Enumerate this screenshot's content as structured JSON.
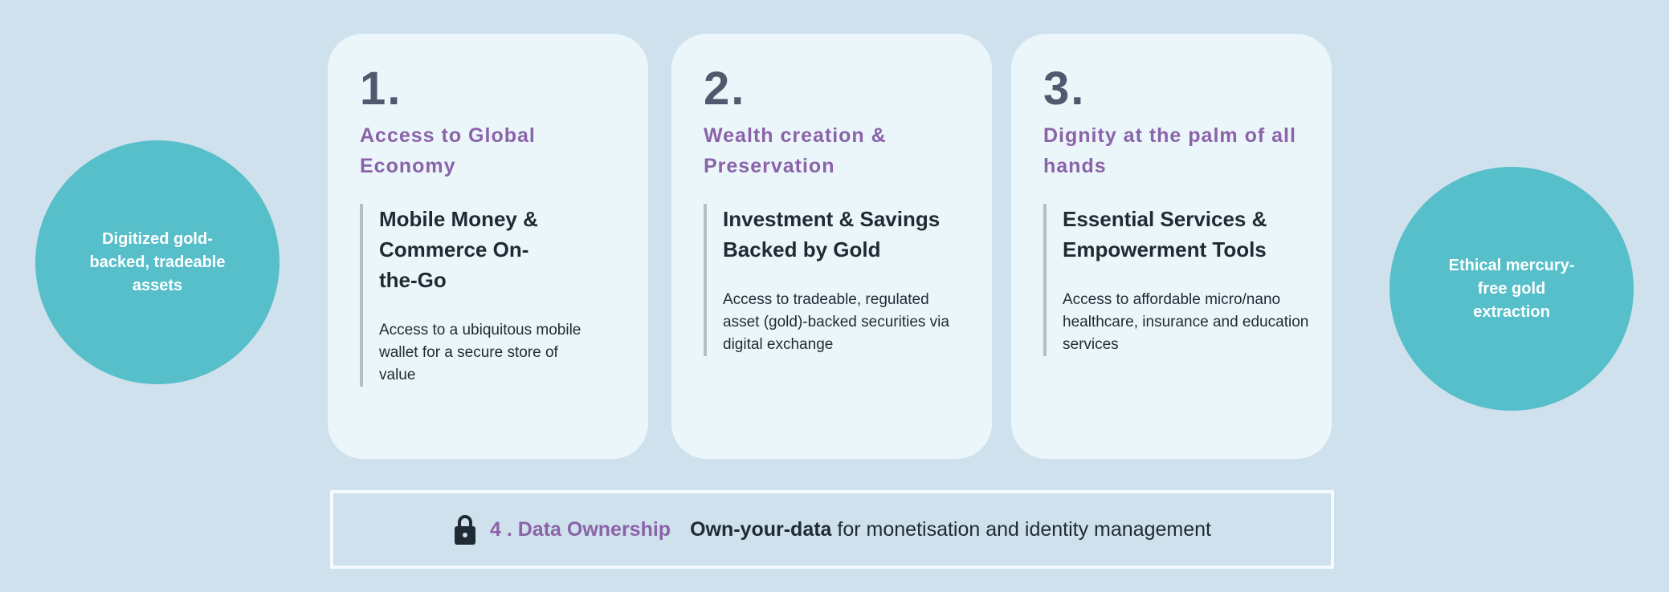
{
  "left_circle": {
    "text": "Digitized gold-backed, tradeable assets"
  },
  "right_circle": {
    "text": "Ethical mercury-free gold extraction"
  },
  "cards": [
    {
      "number": "1.",
      "heading": "Access to Global Economy",
      "subheading": "Mobile Money & Commerce On-the-Go",
      "body": "Access to a ubiquitous mobile wallet for a secure store of value"
    },
    {
      "number": "2.",
      "heading": "Wealth creation & Preservation",
      "subheading": "Investment & Savings Backed by Gold",
      "body": "Access to tradeable, regulated asset (gold)-backed securities via digital exchange"
    },
    {
      "number": "3.",
      "heading": "Dignity at the palm of all hands",
      "subheading": "Essential Services & Empowerment Tools",
      "body": "Access to affordable micro/nano healthcare, insurance and education services"
    }
  ],
  "data_ownership": {
    "icon": "lock-icon",
    "title": "4 . Data Ownership",
    "bold_text": "Own-your-data",
    "text": "for monetisation and identity management"
  },
  "colors": {
    "background": "#cfe1ec",
    "card": "#ebf6fb",
    "circle": "#56bfca",
    "accent_purple": "#8a63a8"
  }
}
